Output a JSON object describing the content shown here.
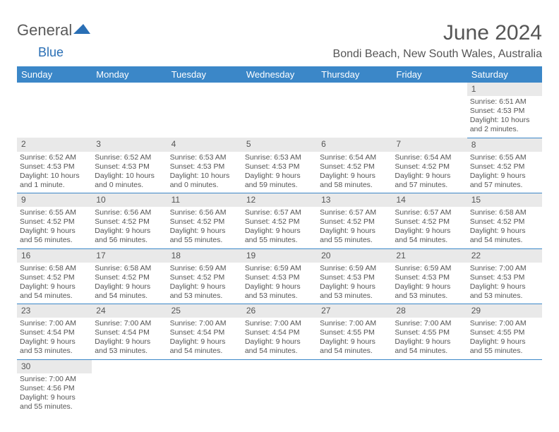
{
  "logo": {
    "part1": "General",
    "part2": "Blue"
  },
  "title": "June 2024",
  "location": "Bondi Beach, New South Wales, Australia",
  "colors": {
    "headerBg": "#3b87c8",
    "headerText": "#ffffff",
    "dayBg": "#e9e9e9",
    "text": "#555555",
    "rowBorder": "#3b87c8"
  },
  "dayHeaders": [
    "Sunday",
    "Monday",
    "Tuesday",
    "Wednesday",
    "Thursday",
    "Friday",
    "Saturday"
  ],
  "weeks": [
    [
      null,
      null,
      null,
      null,
      null,
      null,
      {
        "n": "1",
        "sunrise": "Sunrise: 6:51 AM",
        "sunset": "Sunset: 4:53 PM",
        "d1": "Daylight: 10 hours",
        "d2": "and 2 minutes."
      }
    ],
    [
      {
        "n": "2",
        "sunrise": "Sunrise: 6:52 AM",
        "sunset": "Sunset: 4:53 PM",
        "d1": "Daylight: 10 hours",
        "d2": "and 1 minute."
      },
      {
        "n": "3",
        "sunrise": "Sunrise: 6:52 AM",
        "sunset": "Sunset: 4:53 PM",
        "d1": "Daylight: 10 hours",
        "d2": "and 0 minutes."
      },
      {
        "n": "4",
        "sunrise": "Sunrise: 6:53 AM",
        "sunset": "Sunset: 4:53 PM",
        "d1": "Daylight: 10 hours",
        "d2": "and 0 minutes."
      },
      {
        "n": "5",
        "sunrise": "Sunrise: 6:53 AM",
        "sunset": "Sunset: 4:53 PM",
        "d1": "Daylight: 9 hours",
        "d2": "and 59 minutes."
      },
      {
        "n": "6",
        "sunrise": "Sunrise: 6:54 AM",
        "sunset": "Sunset: 4:52 PM",
        "d1": "Daylight: 9 hours",
        "d2": "and 58 minutes."
      },
      {
        "n": "7",
        "sunrise": "Sunrise: 6:54 AM",
        "sunset": "Sunset: 4:52 PM",
        "d1": "Daylight: 9 hours",
        "d2": "and 57 minutes."
      },
      {
        "n": "8",
        "sunrise": "Sunrise: 6:55 AM",
        "sunset": "Sunset: 4:52 PM",
        "d1": "Daylight: 9 hours",
        "d2": "and 57 minutes."
      }
    ],
    [
      {
        "n": "9",
        "sunrise": "Sunrise: 6:55 AM",
        "sunset": "Sunset: 4:52 PM",
        "d1": "Daylight: 9 hours",
        "d2": "and 56 minutes."
      },
      {
        "n": "10",
        "sunrise": "Sunrise: 6:56 AM",
        "sunset": "Sunset: 4:52 PM",
        "d1": "Daylight: 9 hours",
        "d2": "and 56 minutes."
      },
      {
        "n": "11",
        "sunrise": "Sunrise: 6:56 AM",
        "sunset": "Sunset: 4:52 PM",
        "d1": "Daylight: 9 hours",
        "d2": "and 55 minutes."
      },
      {
        "n": "12",
        "sunrise": "Sunrise: 6:57 AM",
        "sunset": "Sunset: 4:52 PM",
        "d1": "Daylight: 9 hours",
        "d2": "and 55 minutes."
      },
      {
        "n": "13",
        "sunrise": "Sunrise: 6:57 AM",
        "sunset": "Sunset: 4:52 PM",
        "d1": "Daylight: 9 hours",
        "d2": "and 55 minutes."
      },
      {
        "n": "14",
        "sunrise": "Sunrise: 6:57 AM",
        "sunset": "Sunset: 4:52 PM",
        "d1": "Daylight: 9 hours",
        "d2": "and 54 minutes."
      },
      {
        "n": "15",
        "sunrise": "Sunrise: 6:58 AM",
        "sunset": "Sunset: 4:52 PM",
        "d1": "Daylight: 9 hours",
        "d2": "and 54 minutes."
      }
    ],
    [
      {
        "n": "16",
        "sunrise": "Sunrise: 6:58 AM",
        "sunset": "Sunset: 4:52 PM",
        "d1": "Daylight: 9 hours",
        "d2": "and 54 minutes."
      },
      {
        "n": "17",
        "sunrise": "Sunrise: 6:58 AM",
        "sunset": "Sunset: 4:52 PM",
        "d1": "Daylight: 9 hours",
        "d2": "and 54 minutes."
      },
      {
        "n": "18",
        "sunrise": "Sunrise: 6:59 AM",
        "sunset": "Sunset: 4:52 PM",
        "d1": "Daylight: 9 hours",
        "d2": "and 53 minutes."
      },
      {
        "n": "19",
        "sunrise": "Sunrise: 6:59 AM",
        "sunset": "Sunset: 4:53 PM",
        "d1": "Daylight: 9 hours",
        "d2": "and 53 minutes."
      },
      {
        "n": "20",
        "sunrise": "Sunrise: 6:59 AM",
        "sunset": "Sunset: 4:53 PM",
        "d1": "Daylight: 9 hours",
        "d2": "and 53 minutes."
      },
      {
        "n": "21",
        "sunrise": "Sunrise: 6:59 AM",
        "sunset": "Sunset: 4:53 PM",
        "d1": "Daylight: 9 hours",
        "d2": "and 53 minutes."
      },
      {
        "n": "22",
        "sunrise": "Sunrise: 7:00 AM",
        "sunset": "Sunset: 4:53 PM",
        "d1": "Daylight: 9 hours",
        "d2": "and 53 minutes."
      }
    ],
    [
      {
        "n": "23",
        "sunrise": "Sunrise: 7:00 AM",
        "sunset": "Sunset: 4:54 PM",
        "d1": "Daylight: 9 hours",
        "d2": "and 53 minutes."
      },
      {
        "n": "24",
        "sunrise": "Sunrise: 7:00 AM",
        "sunset": "Sunset: 4:54 PM",
        "d1": "Daylight: 9 hours",
        "d2": "and 53 minutes."
      },
      {
        "n": "25",
        "sunrise": "Sunrise: 7:00 AM",
        "sunset": "Sunset: 4:54 PM",
        "d1": "Daylight: 9 hours",
        "d2": "and 54 minutes."
      },
      {
        "n": "26",
        "sunrise": "Sunrise: 7:00 AM",
        "sunset": "Sunset: 4:54 PM",
        "d1": "Daylight: 9 hours",
        "d2": "and 54 minutes."
      },
      {
        "n": "27",
        "sunrise": "Sunrise: 7:00 AM",
        "sunset": "Sunset: 4:55 PM",
        "d1": "Daylight: 9 hours",
        "d2": "and 54 minutes."
      },
      {
        "n": "28",
        "sunrise": "Sunrise: 7:00 AM",
        "sunset": "Sunset: 4:55 PM",
        "d1": "Daylight: 9 hours",
        "d2": "and 54 minutes."
      },
      {
        "n": "29",
        "sunrise": "Sunrise: 7:00 AM",
        "sunset": "Sunset: 4:55 PM",
        "d1": "Daylight: 9 hours",
        "d2": "and 55 minutes."
      }
    ],
    [
      {
        "n": "30",
        "sunrise": "Sunrise: 7:00 AM",
        "sunset": "Sunset: 4:56 PM",
        "d1": "Daylight: 9 hours",
        "d2": "and 55 minutes."
      },
      null,
      null,
      null,
      null,
      null,
      null
    ]
  ]
}
